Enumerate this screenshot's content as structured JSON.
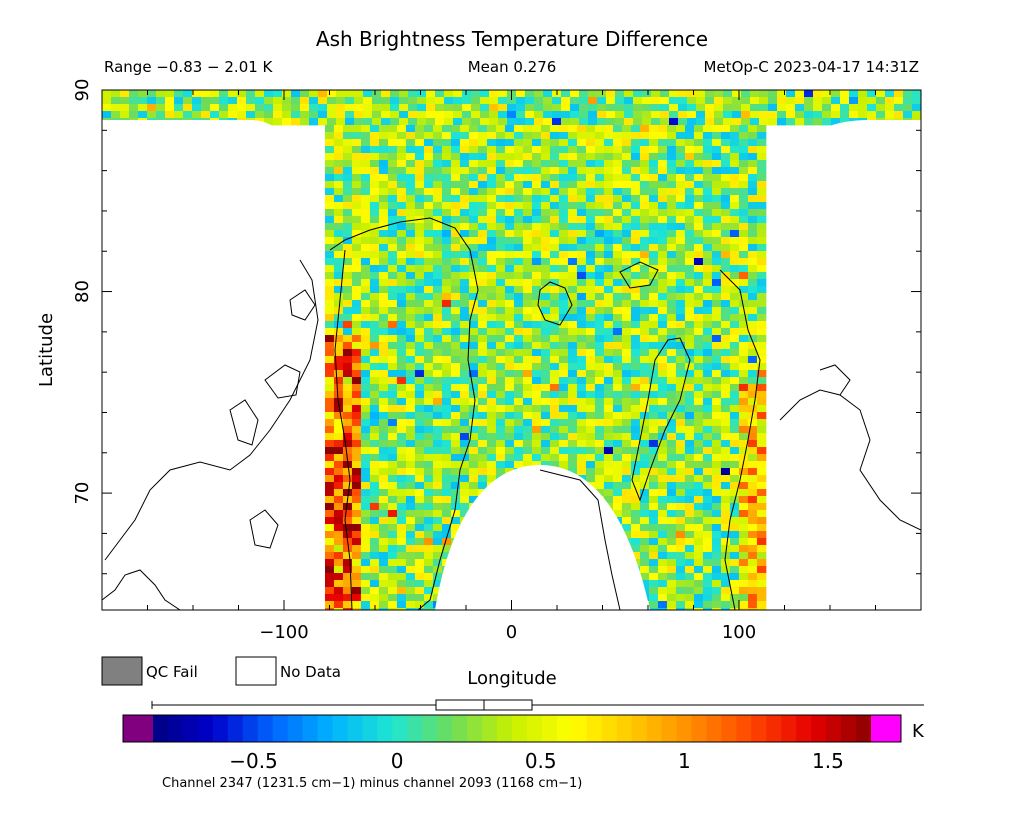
{
  "chart_data": {
    "type": "heatmap",
    "title": "Ash Brightness Temperature Difference",
    "subtitle_range": "Range −0.83 − 2.01 K",
    "subtitle_mean": "Mean 0.276",
    "subtitle_source": "MetOp-C 2023-04-17 14:31Z",
    "xlabel": "Longitude",
    "ylabel": "Latitude",
    "xlim": [
      -180,
      180
    ],
    "ylim": [
      64.2,
      90
    ],
    "x_ticks": [
      -100,
      0,
      100
    ],
    "x_tick_labels": [
      "−100",
      "0",
      "100"
    ],
    "y_ticks": [
      70,
      80,
      90
    ],
    "y_tick_labels": [
      "70",
      "80",
      "90"
    ],
    "swath_longitude_range": [
      -82,
      110
    ],
    "data_range_K": [
      -0.83,
      2.01
    ],
    "mean_K": 0.276,
    "legend": [
      {
        "label": "QC Fail",
        "color": "#808080"
      },
      {
        "label": "No Data",
        "color": "#ffffff"
      }
    ],
    "colorbar": {
      "unit": "K",
      "range": [
        -0.85,
        1.65
      ],
      "ticks": [
        -0.5,
        0,
        0.5,
        1,
        1.5
      ],
      "tick_labels": [
        "−0.5",
        "0",
        "0.5",
        "1",
        "1.5"
      ],
      "under_color": "#800080",
      "over_color": "#ff00ff",
      "stops": [
        "#000080",
        "#0000cd",
        "#0064ff",
        "#00b4ff",
        "#1ee6d2",
        "#6edc5a",
        "#c8f000",
        "#ffff00",
        "#ffc800",
        "#ff8c00",
        "#ff4600",
        "#e60000",
        "#8b0000"
      ],
      "caption": "Channel 2347 (1231.5 cm−1) minus channel 2093 (1168 cm−1)"
    }
  }
}
